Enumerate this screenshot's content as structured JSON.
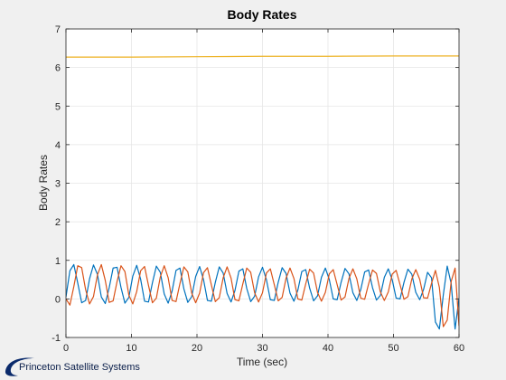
{
  "logo": {
    "text": "Princeton Satellite Systems"
  },
  "chart_data": {
    "type": "line",
    "title": "Body Rates",
    "xlabel": "Time (sec)",
    "ylabel": "Body Rates",
    "xlim": [
      0,
      60
    ],
    "ylim": [
      -1,
      7
    ],
    "xticks": [
      0,
      10,
      20,
      30,
      40,
      50,
      60
    ],
    "yticks": [
      -1,
      0,
      1,
      2,
      3,
      4,
      5,
      6,
      7
    ],
    "grid": true,
    "colors": [
      "#0072BD",
      "#D95319",
      "#EDB120"
    ],
    "series": [
      {
        "x": [
          0,
          0.6,
          1.2,
          1.8,
          2.4,
          3.0,
          3.6,
          4.2,
          4.8,
          5.4,
          6.0,
          6.6,
          7.2,
          7.8,
          8.4,
          9.0,
          9.6,
          10.2,
          10.8,
          11.4,
          12.0,
          12.6,
          13.2,
          13.8,
          14.4,
          15.0,
          15.6,
          16.2,
          16.8,
          17.4,
          18.0,
          18.6,
          19.2,
          19.8,
          20.4,
          21.0,
          21.6,
          22.2,
          22.8,
          23.4,
          24.0,
          24.6,
          25.2,
          25.8,
          26.4,
          27.0,
          27.6,
          28.2,
          28.8,
          29.4,
          30.0,
          30.6,
          31.2,
          31.8,
          32.4,
          33.0,
          33.6,
          34.2,
          34.8,
          35.4,
          36.0,
          36.6,
          37.2,
          37.8,
          38.4,
          39.0,
          39.6,
          40.2,
          40.8,
          41.4,
          42.0,
          42.6,
          43.2,
          43.8,
          44.4,
          45.0,
          45.6,
          46.2,
          46.8,
          47.4,
          48.0,
          48.6,
          49.2,
          49.8,
          50.4,
          51.0,
          51.6,
          52.2,
          52.8,
          53.4,
          54.0,
          54.6,
          55.2,
          55.8,
          56.4,
          57.0,
          57.6,
          58.2,
          58.8,
          59.4,
          60.0
        ],
        "y": [
          0.05,
          0.73,
          0.89,
          0.41,
          -0.1,
          -0.04,
          0.52,
          0.88,
          0.64,
          0.05,
          -0.12,
          0.29,
          0.8,
          0.82,
          0.3,
          -0.11,
          0.04,
          0.59,
          0.87,
          0.51,
          -0.06,
          -0.08,
          0.42,
          0.85,
          0.69,
          0.13,
          -0.11,
          0.2,
          0.74,
          0.8,
          0.26,
          -0.09,
          0.06,
          0.58,
          0.84,
          0.5,
          -0.04,
          -0.06,
          0.43,
          0.83,
          0.67,
          0.14,
          -0.08,
          0.22,
          0.72,
          0.78,
          0.27,
          -0.07,
          0.07,
          0.57,
          0.82,
          0.5,
          -0.02,
          -0.04,
          0.43,
          0.81,
          0.66,
          0.15,
          -0.06,
          0.23,
          0.71,
          0.76,
          0.28,
          -0.05,
          0.08,
          0.56,
          0.8,
          0.5,
          0.0,
          -0.02,
          0.43,
          0.79,
          0.65,
          0.16,
          -0.04,
          0.24,
          0.7,
          0.75,
          0.29,
          -0.03,
          0.09,
          0.56,
          0.78,
          0.5,
          0.02,
          0.0,
          0.43,
          0.77,
          0.64,
          0.17,
          -0.02,
          0.25,
          0.69,
          0.55,
          -0.6,
          -0.78,
          0.1,
          0.85,
          0.4,
          -0.78,
          0.02
        ]
      },
      {
        "x": [
          0,
          0.6,
          1.2,
          1.8,
          2.4,
          3.0,
          3.6,
          4.2,
          4.8,
          5.4,
          6.0,
          6.6,
          7.2,
          7.8,
          8.4,
          9.0,
          9.6,
          10.2,
          10.8,
          11.4,
          12.0,
          12.6,
          13.2,
          13.8,
          14.4,
          15.0,
          15.6,
          16.2,
          16.8,
          17.4,
          18.0,
          18.6,
          19.2,
          19.8,
          20.4,
          21.0,
          21.6,
          22.2,
          22.8,
          23.4,
          24.0,
          24.6,
          25.2,
          25.8,
          26.4,
          27.0,
          27.6,
          28.2,
          28.8,
          29.4,
          30.0,
          30.6,
          31.2,
          31.8,
          32.4,
          33.0,
          33.6,
          34.2,
          34.8,
          35.4,
          36.0,
          36.6,
          37.2,
          37.8,
          38.4,
          39.0,
          39.6,
          40.2,
          40.8,
          41.4,
          42.0,
          42.6,
          43.2,
          43.8,
          44.4,
          45.0,
          45.6,
          46.2,
          46.8,
          47.4,
          48.0,
          48.6,
          49.2,
          49.8,
          50.4,
          51.0,
          51.6,
          52.2,
          52.8,
          53.4,
          54.0,
          54.6,
          55.2,
          55.8,
          56.4,
          57.0,
          57.6,
          58.2,
          58.8,
          59.4,
          60.0
        ],
        "y": [
          0.0,
          -0.16,
          0.32,
          0.86,
          0.81,
          0.24,
          -0.13,
          0.06,
          0.62,
          0.89,
          0.48,
          -0.09,
          -0.05,
          0.45,
          0.86,
          0.71,
          0.1,
          -0.13,
          0.19,
          0.73,
          0.84,
          0.35,
          -0.1,
          0.02,
          0.57,
          0.86,
          0.55,
          -0.04,
          -0.07,
          0.4,
          0.83,
          0.7,
          0.15,
          -0.1,
          0.15,
          0.68,
          0.81,
          0.36,
          -0.07,
          0.03,
          0.55,
          0.83,
          0.54,
          -0.02,
          -0.05,
          0.39,
          0.8,
          0.69,
          0.16,
          -0.08,
          0.16,
          0.67,
          0.78,
          0.37,
          -0.05,
          0.04,
          0.54,
          0.8,
          0.53,
          0.0,
          -0.03,
          0.39,
          0.77,
          0.67,
          0.17,
          -0.06,
          0.17,
          0.65,
          0.76,
          0.37,
          -0.03,
          0.05,
          0.53,
          0.78,
          0.52,
          0.02,
          -0.01,
          0.39,
          0.75,
          0.66,
          0.18,
          -0.04,
          0.18,
          0.64,
          0.74,
          0.37,
          -0.01,
          0.06,
          0.52,
          0.76,
          0.51,
          0.03,
          0.02,
          0.4,
          0.74,
          0.3,
          -0.72,
          -0.55,
          0.45,
          0.8,
          -0.7
        ]
      },
      {
        "x": [
          0,
          10,
          20,
          30,
          40,
          50,
          60
        ],
        "y": [
          6.27,
          6.27,
          6.28,
          6.29,
          6.29,
          6.3,
          6.3
        ]
      }
    ]
  }
}
